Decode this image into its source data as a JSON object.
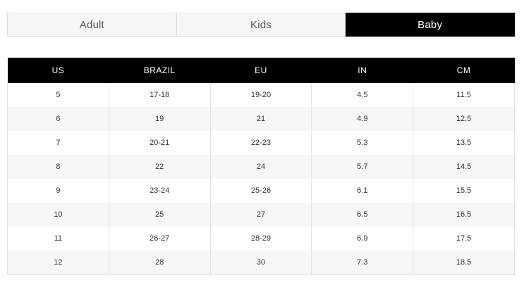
{
  "tabs": [
    {
      "label": "Adult",
      "active": false
    },
    {
      "label": "Kids",
      "active": false
    },
    {
      "label": "Baby",
      "active": true
    }
  ],
  "table": {
    "headers": [
      "US",
      "BRAZIL",
      "EU",
      "IN",
      "CM"
    ],
    "rows": [
      [
        "5",
        "17-18",
        "19-20",
        "4.5",
        "11.5"
      ],
      [
        "6",
        "19",
        "21",
        "4.9",
        "12.5"
      ],
      [
        "7",
        "20-21",
        "22-23",
        "5.3",
        "13.5"
      ],
      [
        "8",
        "22",
        "24",
        "5.7",
        "14.5"
      ],
      [
        "9",
        "23-24",
        "25-26",
        "6.1",
        "15.5"
      ],
      [
        "10",
        "25",
        "27",
        "6.5",
        "16.5"
      ],
      [
        "11",
        "26-27",
        "28-29",
        "6.9",
        "17.5"
      ],
      [
        "12",
        "28",
        "30",
        "7.3",
        "18.5"
      ]
    ]
  },
  "colors": {
    "active_tab_bg": "#000000",
    "header_bg": "#000000",
    "stripe_bg": "#f7f7f7"
  }
}
